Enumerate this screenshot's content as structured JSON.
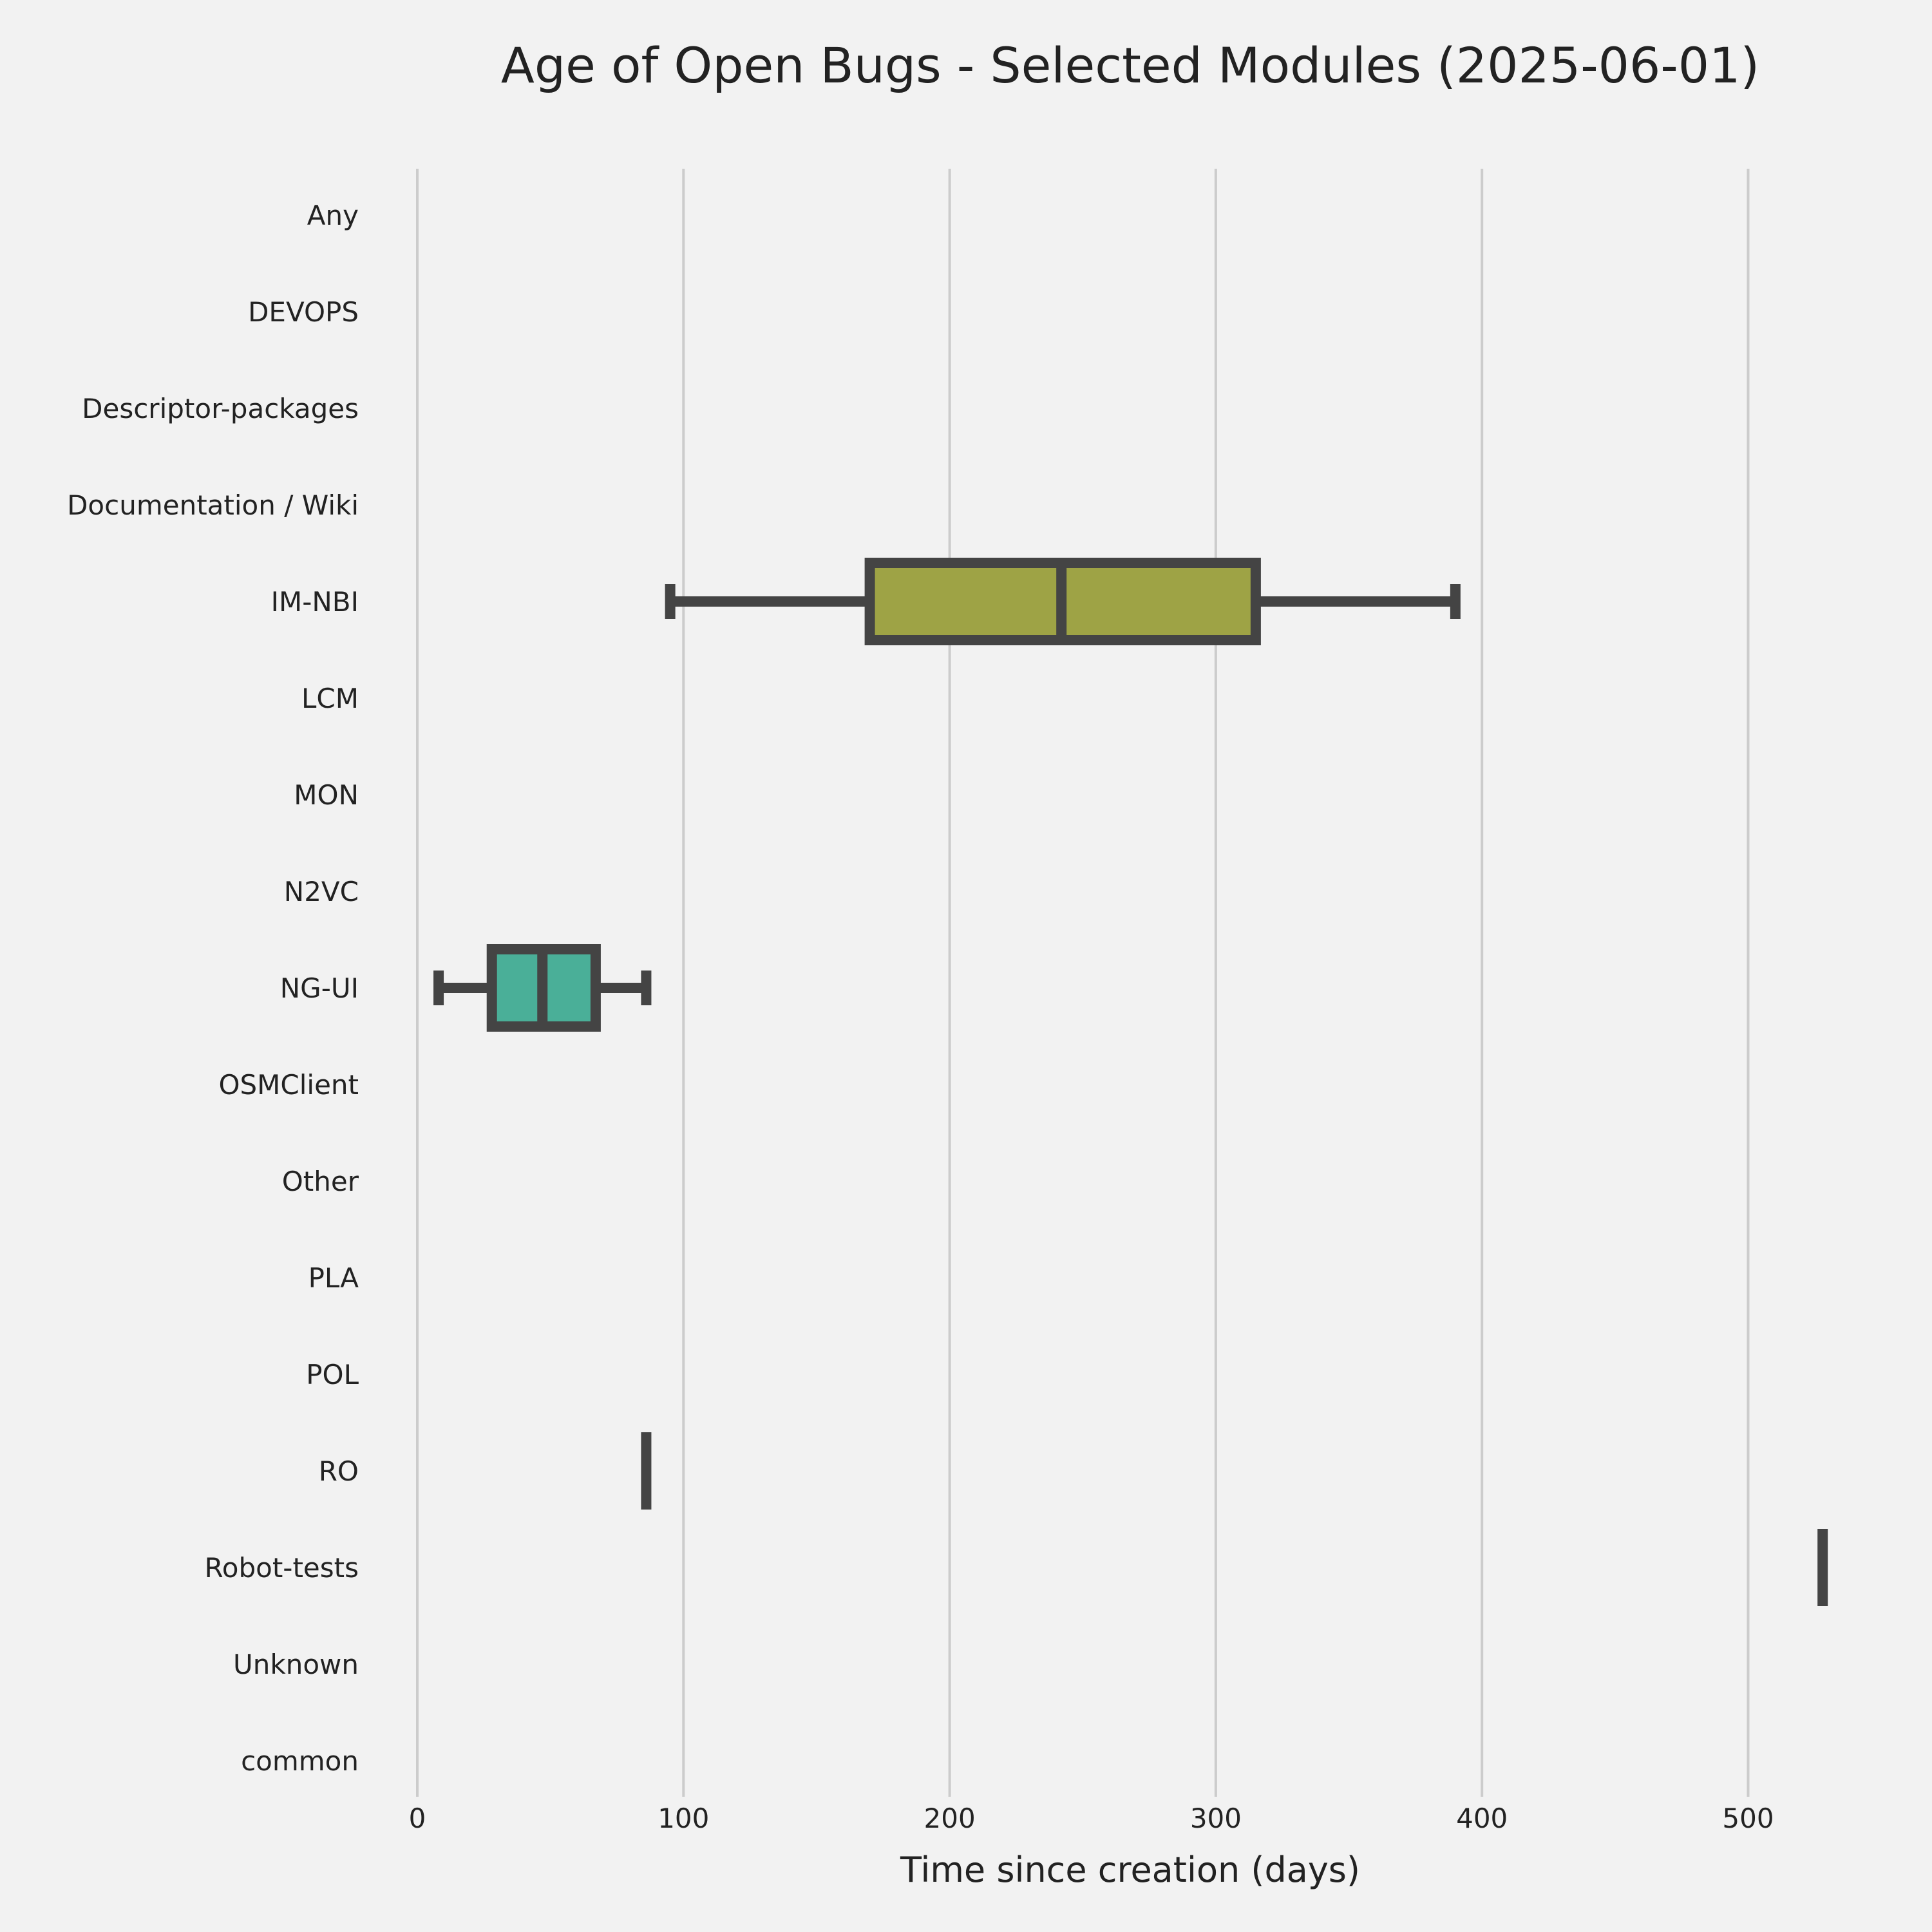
{
  "chart_data": {
    "type": "boxplot",
    "orientation": "horizontal",
    "title": "Age of Open Bugs - Selected Modules (2025-06-01)",
    "xlabel": "Time since creation (days)",
    "ylabel": "",
    "xlim": [
      -8,
      536
    ],
    "xticks": [
      0,
      100,
      200,
      300,
      400,
      500
    ],
    "grid": true,
    "legend": "none",
    "categories": [
      "Any",
      "DEVOPS",
      "Descriptor-packages",
      "Documentation / Wiki",
      "IM-NBI",
      "LCM",
      "MON",
      "N2VC",
      "NG-UI",
      "OSMClient",
      "Other",
      "PLA",
      "POL",
      "RO",
      "Robot-tests",
      "Unknown",
      "common"
    ],
    "boxes": [
      {
        "category": "IM-NBI",
        "whisker_low": 95,
        "q1": 170,
        "median": 242,
        "q3": 315,
        "whisker_high": 390,
        "color": "#9ea345"
      },
      {
        "category": "NG-UI",
        "whisker_low": 8,
        "q1": 28,
        "median": 47,
        "q3": 67,
        "whisker_high": 86,
        "color": "#4aaf98"
      },
      {
        "category": "RO",
        "whisker_low": 86,
        "q1": 86,
        "median": 86,
        "q3": 86,
        "whisker_high": 86,
        "color": "#444444"
      },
      {
        "category": "Robot-tests",
        "whisker_low": 528,
        "q1": 528,
        "median": 528,
        "q3": 528,
        "whisker_high": 528,
        "color": "#444444"
      }
    ],
    "line_color": "#444444",
    "grid_color": "#cccccc",
    "background": "#f2f2f2"
  }
}
